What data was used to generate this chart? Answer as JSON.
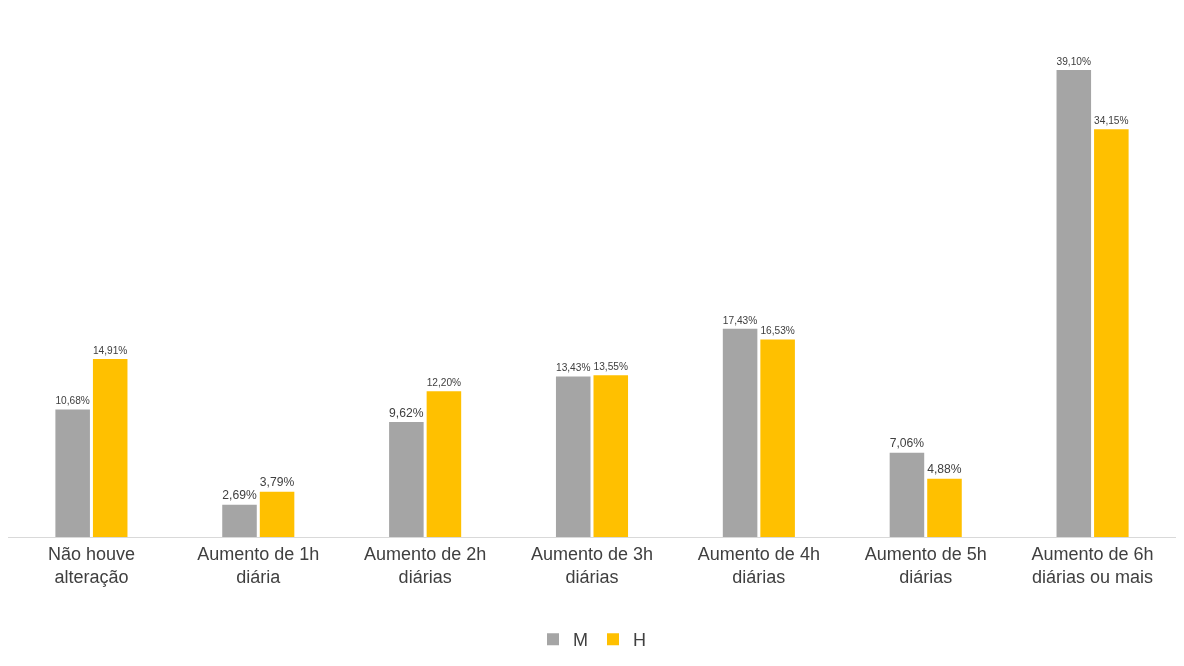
{
  "chart_data": {
    "type": "bar",
    "categories": [
      "Não houve alteração",
      "Aumento de 1h diária",
      "Aumento de 2h diárias",
      "Aumento de 3h diárias",
      "Aumento de 4h diárias",
      "Aumento de 5h diárias",
      "Aumento de 6h diárias ou mais"
    ],
    "series": [
      {
        "name": "M",
        "color": "#a5a5a5",
        "values": [
          10.68,
          2.69,
          9.62,
          13.43,
          17.43,
          7.06,
          39.1
        ],
        "value_labels": [
          "10,68%",
          "2,69%",
          "9,62%",
          "13,43%",
          "17,43%",
          "7,06%",
          "39,10%"
        ]
      },
      {
        "name": "H",
        "color": "#ffc000",
        "values": [
          14.91,
          3.79,
          12.2,
          13.55,
          16.53,
          4.88,
          34.15
        ],
        "value_labels": [
          "14,91%",
          "3,79%",
          "12,20%",
          "13,55%",
          "16,53%",
          "4,88%",
          "34,15%"
        ]
      }
    ],
    "legend": "bottom",
    "grid": false
  }
}
